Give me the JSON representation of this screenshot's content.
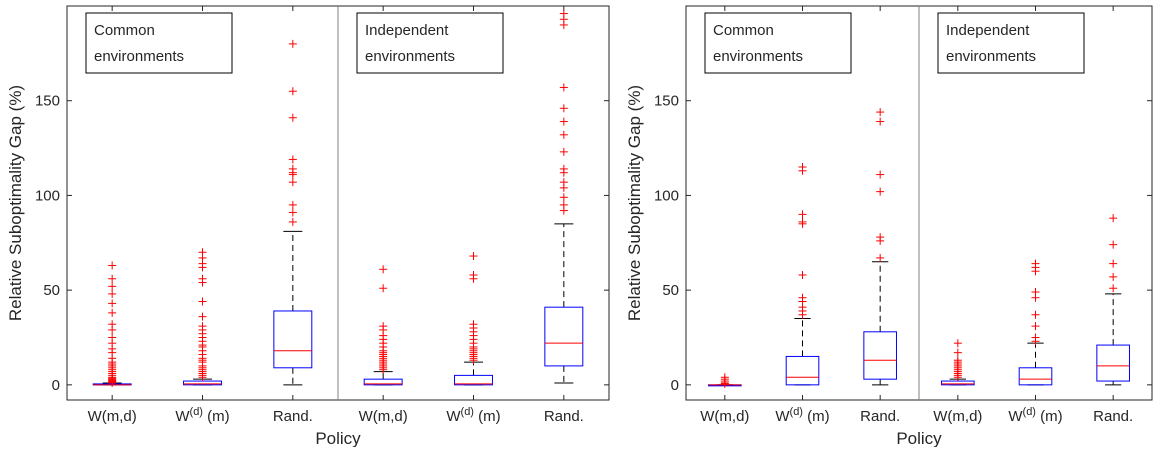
{
  "chart_data": [
    {
      "type": "boxplot",
      "panel": "left",
      "xlabel": "Policy",
      "ylabel": "Relative Suboptimality Gap (%)",
      "ylim": [
        -8,
        200
      ],
      "yticks": [
        0,
        50,
        100,
        150
      ],
      "grid": false,
      "groups": [
        {
          "label": "Common environments"
        },
        {
          "label": "Independent environments"
        }
      ],
      "categories": [
        {
          "base": "W(m,d)",
          "sup": "",
          "suffix": ""
        },
        {
          "base": "W",
          "sup": "(d)",
          "suffix": "(m)"
        },
        {
          "base": "Rand.",
          "sup": "",
          "suffix": ""
        },
        {
          "base": "W(m,d)",
          "sup": "",
          "suffix": ""
        },
        {
          "base": "W",
          "sup": "(d)",
          "suffix": "(m)"
        },
        {
          "base": "Rand.",
          "sup": "",
          "suffix": ""
        }
      ],
      "boxes": [
        {
          "lower_whisker": 0,
          "q1": 0,
          "median": 0,
          "q3": 0.5,
          "upper_whisker": 1,
          "outliers": [
            1,
            1.5,
            2,
            2.5,
            3,
            3.5,
            4,
            5,
            6,
            7,
            8,
            9,
            10,
            11,
            12,
            14,
            17,
            19,
            22,
            25,
            29,
            32,
            38,
            43,
            48,
            52,
            56,
            63
          ]
        },
        {
          "lower_whisker": 0,
          "q1": 0,
          "median": 0.5,
          "q3": 2,
          "upper_whisker": 3,
          "outliers": [
            4,
            5,
            6,
            7,
            8,
            9,
            10,
            12,
            13,
            14,
            16,
            18,
            20,
            21,
            23,
            25,
            27,
            29,
            31,
            36,
            44,
            54,
            56,
            62,
            64,
            67,
            70
          ]
        },
        {
          "lower_whisker": 0,
          "q1": 9,
          "median": 18,
          "q3": 39,
          "upper_whisker": 81,
          "outliers": [
            86,
            91,
            95,
            107,
            111,
            112,
            114,
            119,
            141,
            155,
            180
          ]
        },
        {
          "lower_whisker": 0,
          "q1": 0,
          "median": 0.5,
          "q3": 3,
          "upper_whisker": 7,
          "outliers": [
            8,
            9,
            10,
            11,
            12,
            13,
            14,
            15,
            16,
            17,
            18,
            20,
            22,
            24,
            26,
            29,
            31,
            51,
            61
          ]
        },
        {
          "lower_whisker": 0,
          "q1": 0,
          "median": 0.5,
          "q3": 5,
          "upper_whisker": 12,
          "outliers": [
            13,
            14,
            15,
            16,
            17,
            18,
            19,
            20,
            22,
            24,
            26,
            28,
            30,
            32,
            56,
            58,
            68
          ]
        },
        {
          "lower_whisker": 1,
          "q1": 10,
          "median": 22,
          "q3": 41,
          "upper_whisker": 85,
          "outliers": [
            92,
            95,
            99,
            104,
            107,
            112,
            114,
            123,
            132,
            139,
            146,
            157,
            190,
            193,
            196
          ]
        }
      ],
      "colors": {
        "box": "#0000ff",
        "median": "#ff0000",
        "outlier": "#ff0000",
        "whisker": "#000000",
        "axis": "#262626",
        "divider": "#808080"
      }
    },
    {
      "type": "boxplot",
      "panel": "right",
      "xlabel": "Policy",
      "ylabel": "Relative Suboptimality Gap (%)",
      "ylim": [
        -8,
        200
      ],
      "yticks": [
        0,
        50,
        100,
        150
      ],
      "grid": false,
      "groups": [
        {
          "label": "Common environments"
        },
        {
          "label": "Independent environments"
        }
      ],
      "categories": [
        {
          "base": "W(m,d)",
          "sup": "",
          "suffix": ""
        },
        {
          "base": "W",
          "sup": "(d)",
          "suffix": "(m)"
        },
        {
          "base": "Rand.",
          "sup": "",
          "suffix": ""
        },
        {
          "base": "W(m,d)",
          "sup": "",
          "suffix": ""
        },
        {
          "base": "W",
          "sup": "(d)",
          "suffix": "(m)"
        },
        {
          "base": "Rand.",
          "sup": "",
          "suffix": ""
        }
      ],
      "boxes": [
        {
          "lower_whisker": 0,
          "q1": 0,
          "median": 0,
          "q3": 0,
          "upper_whisker": 0,
          "outliers": [
            0.5,
            1,
            2,
            3,
            4
          ]
        },
        {
          "lower_whisker": 0,
          "q1": 0,
          "median": 4,
          "q3": 15,
          "upper_whisker": 35,
          "outliers": [
            37,
            39,
            41,
            44,
            46,
            58,
            85,
            86,
            90,
            113,
            115
          ]
        },
        {
          "lower_whisker": 0,
          "q1": 3,
          "median": 13,
          "q3": 28,
          "upper_whisker": 65,
          "outliers": [
            67,
            76,
            78,
            102,
            111,
            139,
            144
          ]
        },
        {
          "lower_whisker": 0,
          "q1": 0,
          "median": 0.5,
          "q3": 2,
          "upper_whisker": 3,
          "outliers": [
            4,
            5,
            6,
            7,
            8,
            9,
            10,
            11,
            12,
            13,
            17,
            22
          ]
        },
        {
          "lower_whisker": 0,
          "q1": 0,
          "median": 3,
          "q3": 9,
          "upper_whisker": 22,
          "outliers": [
            23,
            25,
            31,
            37,
            46,
            49,
            60,
            62,
            64
          ]
        },
        {
          "lower_whisker": 0,
          "q1": 2,
          "median": 10,
          "q3": 21,
          "upper_whisker": 48,
          "outliers": [
            51,
            57,
            64,
            74,
            88
          ]
        }
      ],
      "colors": {
        "box": "#0000ff",
        "median": "#ff0000",
        "outlier": "#ff0000",
        "whisker": "#000000",
        "axis": "#262626",
        "divider": "#808080"
      }
    }
  ]
}
